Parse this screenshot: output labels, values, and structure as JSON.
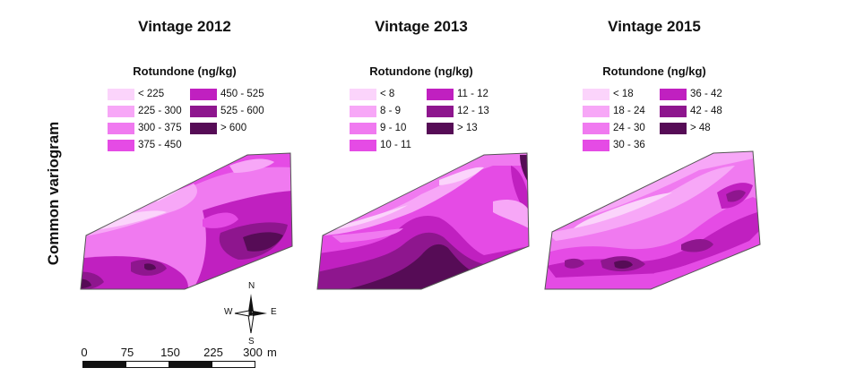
{
  "row_label": "Common variogram",
  "legend_title": "Rotundone (ng/kg)",
  "colors": [
    "#fbd4fb",
    "#f7a7f7",
    "#f07af0",
    "#e54be5",
    "#c020c0",
    "#8e168e",
    "#560c56"
  ],
  "panels": [
    {
      "title": "Vintage 2012",
      "legend": [
        "< 225",
        "225 - 300",
        "300 - 375",
        "375 - 450",
        "450 - 525",
        "525 - 600",
        "> 600"
      ]
    },
    {
      "title": "Vintage 2013",
      "legend": [
        "< 8",
        "8 - 9",
        "9 - 10",
        "10 - 11",
        "11 - 12",
        "12 - 13",
        "> 13"
      ]
    },
    {
      "title": "Vintage 2015",
      "legend": [
        "< 18",
        "18 - 24",
        "24 - 30",
        "30 - 36",
        "36 - 42",
        "42 - 48",
        "> 48"
      ]
    }
  ],
  "compass": {
    "n": "N",
    "s": "S",
    "e": "E",
    "w": "W"
  },
  "scale": {
    "ticks": [
      "0",
      "75",
      "150",
      "225",
      "300"
    ],
    "unit": "m"
  }
}
